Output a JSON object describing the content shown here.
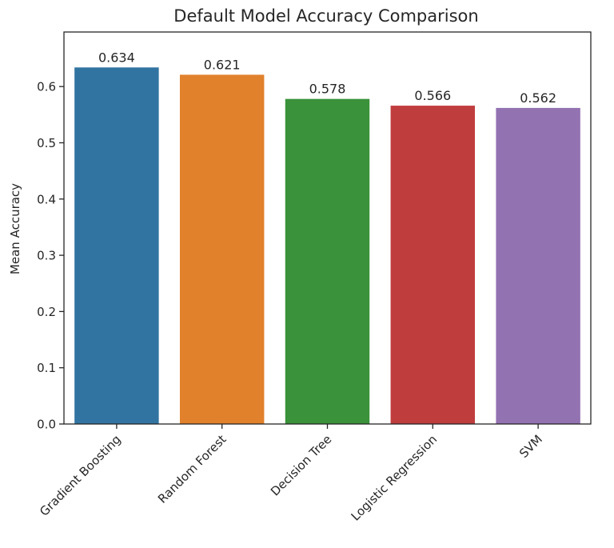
{
  "chart_data": {
    "type": "bar",
    "title": "Default Model Accuracy Comparison",
    "xlabel": "",
    "ylabel": "Mean Accuracy",
    "categories": [
      "Gradient Boosting",
      "Random Forest",
      "Decision Tree",
      "Logistic Regression",
      "SVM"
    ],
    "values": [
      0.634,
      0.621,
      0.578,
      0.566,
      0.562
    ],
    "value_labels": [
      "0.634",
      "0.621",
      "0.578",
      "0.566",
      "0.562"
    ],
    "colors": [
      "#3274a1",
      "#e1812c",
      "#3a923a",
      "#c03d3e",
      "#9372b2"
    ],
    "ylim": [
      0,
      0.697
    ],
    "yticks": [
      0.0,
      0.1,
      0.2,
      0.3,
      0.4,
      0.5,
      0.6
    ],
    "ytick_labels": [
      "0.0",
      "0.1",
      "0.2",
      "0.3",
      "0.4",
      "0.5",
      "0.6"
    ],
    "grid": false,
    "legend": null,
    "xtick_rotation": 45
  }
}
